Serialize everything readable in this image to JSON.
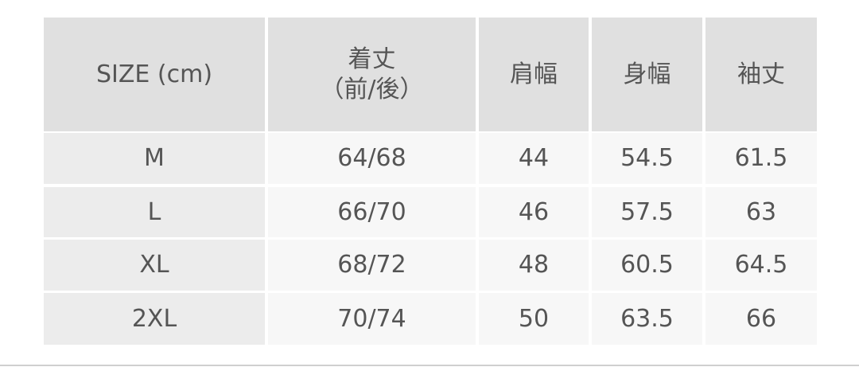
{
  "table": {
    "header": [
      "SIZE (cm)",
      [
        "着丈",
        "（前/後）"
      ],
      "肩幅",
      "身幅",
      "袖丈"
    ],
    "rows": [
      [
        "M",
        "64/68",
        44,
        54.5,
        61.5
      ],
      [
        "L",
        "66/70",
        46,
        57.5,
        63
      ],
      [
        "XL",
        "68/72",
        48,
        60.5,
        64.5
      ],
      [
        "2XL",
        "70/74",
        50,
        63.5,
        66
      ]
    ]
  }
}
